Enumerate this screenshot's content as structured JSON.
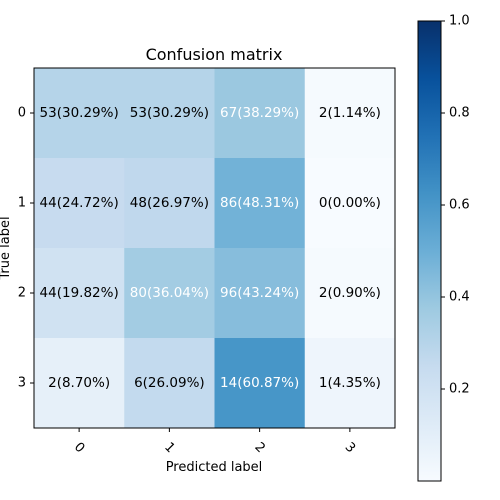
{
  "chart_data": {
    "type": "heatmap",
    "title": "Confusion matrix",
    "xlabel": "Predicted label",
    "ylabel": "True label",
    "x_categories": [
      "0",
      "1",
      "2",
      "3"
    ],
    "y_categories": [
      "0",
      "1",
      "2",
      "3"
    ],
    "values": [
      [
        0.3029,
        0.3029,
        0.3829,
        0.0114
      ],
      [
        0.2472,
        0.2697,
        0.4831,
        0.0
      ],
      [
        0.1982,
        0.3604,
        0.4324,
        0.009
      ],
      [
        0.087,
        0.2609,
        0.6087,
        0.0435
      ]
    ],
    "cell_labels": [
      [
        "53(30.29%)",
        "53(30.29%)",
        "67(38.29%)",
        "2(1.14%)"
      ],
      [
        "44(24.72%)",
        "48(26.97%)",
        "86(48.31%)",
        "0(0.00%)"
      ],
      [
        "44(19.82%)",
        "80(36.04%)",
        "96(43.24%)",
        "2(0.90%)"
      ],
      [
        "2(8.70%)",
        "6(26.09%)",
        "14(60.87%)",
        "1(4.35%)"
      ]
    ],
    "colorbar": {
      "range": [
        0,
        1
      ],
      "ticks": [
        0.2,
        0.4,
        0.6,
        0.8,
        1.0
      ],
      "tick_labels": [
        "0.2",
        "0.4",
        "0.6",
        "0.8",
        "1.0"
      ],
      "colormap": "Blues"
    },
    "grid": false
  }
}
